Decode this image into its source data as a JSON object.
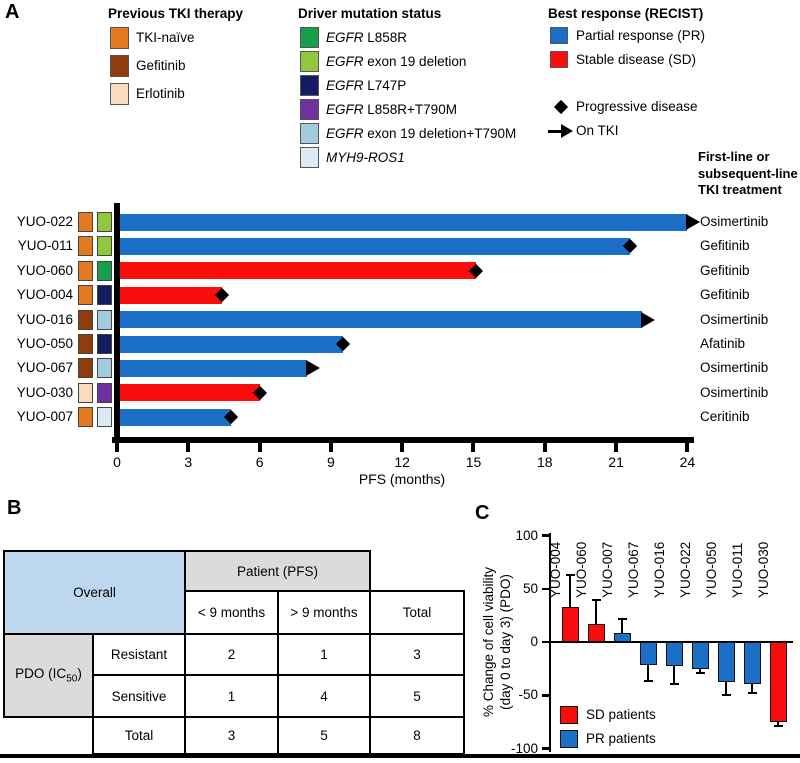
{
  "colors": {
    "tki_naive": "#E4791F",
    "gefitinib_prev": "#8E3D0B",
    "erlotinib_prev": "#F8DCBE",
    "egfr_l858r": "#16A04C",
    "egfr_ex19": "#90C73E",
    "egfr_l747p": "#131B63",
    "egfr_l858r_t790m": "#7030A0",
    "egfr_ex19_t790m": "#A3CBDF",
    "myh9_ros1": "#DCEAF3",
    "PR": "#1B6FC7",
    "SD": "#F90D0D",
    "table_blue": "#BDD7EE",
    "table_gray": "#DBDBDB"
  },
  "panelA": {
    "label": "A",
    "legends": {
      "tki": {
        "title": "Previous TKI therapy",
        "items": [
          {
            "label": "TKI-naïve",
            "color": "tki_naive"
          },
          {
            "label": "Gefitinib",
            "color": "gefitinib_prev"
          },
          {
            "label": "Erlotinib",
            "color": "erlotinib_prev"
          }
        ]
      },
      "driver": {
        "title": "Driver mutation status",
        "items": [
          {
            "italic": "EGFR",
            "rest": " L858R",
            "color": "egfr_l858r"
          },
          {
            "italic": "EGFR",
            "rest": " exon 19 deletion",
            "color": "egfr_ex19"
          },
          {
            "italic": "EGFR",
            "rest": " L747P",
            "color": "egfr_l747p"
          },
          {
            "italic": "EGFR",
            "rest": " L858R+T790M",
            "color": "egfr_l858r_t790m"
          },
          {
            "italic": "EGFR",
            "rest": " exon 19 deletion+T790M",
            "color": "egfr_ex19_t790m"
          },
          {
            "italic": "MYH9-ROS1",
            "rest": "",
            "color": "myh9_ros1"
          }
        ]
      },
      "recist": {
        "title": "Best response (RECIST)",
        "items": [
          {
            "label": "Partial response (PR)",
            "color": "PR"
          },
          {
            "label": "Stable disease (SD)",
            "color": "SD"
          }
        ],
        "markers": [
          {
            "label": "Progressive disease",
            "type": "diamond"
          },
          {
            "label": "On TKI",
            "type": "arrow"
          }
        ]
      }
    },
    "treatment_header": "First-line or\nsubsequent-line\nTKI treatment"
  },
  "panelB": {
    "label": "B"
  },
  "panelC": {
    "label": "C"
  },
  "chart_data": [
    {
      "id": "pfs-swimmer-chart",
      "type": "bar",
      "orientation": "horizontal",
      "xlabel": "PFS (months)",
      "xlim": [
        0,
        24
      ],
      "xticks": [
        0,
        3,
        6,
        9,
        12,
        15,
        18,
        21,
        24
      ],
      "categories": [
        "YUO-022",
        "YUO-011",
        "YUO-060",
        "YUO-004",
        "YUO-016",
        "YUO-050",
        "YUO-067",
        "YUO-030",
        "YUO-007"
      ],
      "values": [
        24.0,
        21.6,
        15.1,
        4.4,
        22.1,
        9.5,
        8.0,
        6.0,
        4.8
      ],
      "response": [
        "PR",
        "PR",
        "SD",
        "SD",
        "PR",
        "PR",
        "PR",
        "SD",
        "PR"
      ],
      "end_markers": [
        "arrow",
        "diamond",
        "diamond",
        "diamond",
        "arrow",
        "diamond",
        "arrow",
        "diamond",
        "diamond"
      ],
      "prev_tki": [
        "tki_naive",
        "tki_naive",
        "tki_naive",
        "tki_naive",
        "gefitinib_prev",
        "gefitinib_prev",
        "gefitinib_prev",
        "erlotinib_prev",
        "tki_naive"
      ],
      "driver": [
        "egfr_ex19",
        "egfr_ex19",
        "egfr_l858r",
        "egfr_l747p",
        "egfr_ex19_t790m",
        "egfr_l747p",
        "egfr_ex19_t790m",
        "egfr_l858r_t790m",
        "myh9_ros1"
      ],
      "treatments": [
        "Osimertinib",
        "Gefitinib",
        "Gefitinib",
        "Gefitinib",
        "Osimertinib",
        "Afatinib",
        "Osimertinib",
        "Osimertinib",
        "Ceritinib"
      ]
    },
    {
      "id": "pdo-pfs-contingency-table",
      "type": "table",
      "overall_label": "Overall",
      "col_group_label": "Patient (PFS)",
      "col_headers": [
        "< 9 months",
        "> 9 months",
        "Total"
      ],
      "row_group_label": {
        "pre": "PDO (IC",
        "sub": "50",
        "post": ")"
      },
      "row_headers": [
        "Resistant",
        "Sensitive",
        "Total"
      ],
      "values": [
        [
          2,
          1,
          3
        ],
        [
          1,
          4,
          5
        ],
        [
          3,
          5,
          8
        ]
      ]
    },
    {
      "id": "pdo-viability-chart",
      "type": "bar",
      "orientation": "vertical",
      "ylabel": "% Change of cell viability\n(day 0 to day 3) (PDO)",
      "ylim": [
        -100,
        100
      ],
      "yticks": [
        100,
        50,
        0,
        -50,
        -100
      ],
      "ytick_labels": [
        "100",
        "50",
        "0",
        "-50",
        "-100"
      ],
      "categories": [
        "YUO-004",
        "YUO-060",
        "YUO-007",
        "YUO-067",
        "YUO-016",
        "YUO-022",
        "YUO-050",
        "YUO-011",
        "YUO-030"
      ],
      "values": [
        33,
        17,
        8,
        -22,
        -23,
        -25,
        -38,
        -39,
        -75
      ],
      "errors": [
        30,
        22,
        14,
        15,
        16,
        4,
        12,
        9,
        4
      ],
      "bar_colors": [
        "SD",
        "SD",
        "PR",
        "PR",
        "PR",
        "PR",
        "PR",
        "PR",
        "SD"
      ],
      "legend": [
        {
          "label": "SD patients",
          "color": "SD"
        },
        {
          "label": "PR patients",
          "color": "PR"
        }
      ]
    }
  ]
}
